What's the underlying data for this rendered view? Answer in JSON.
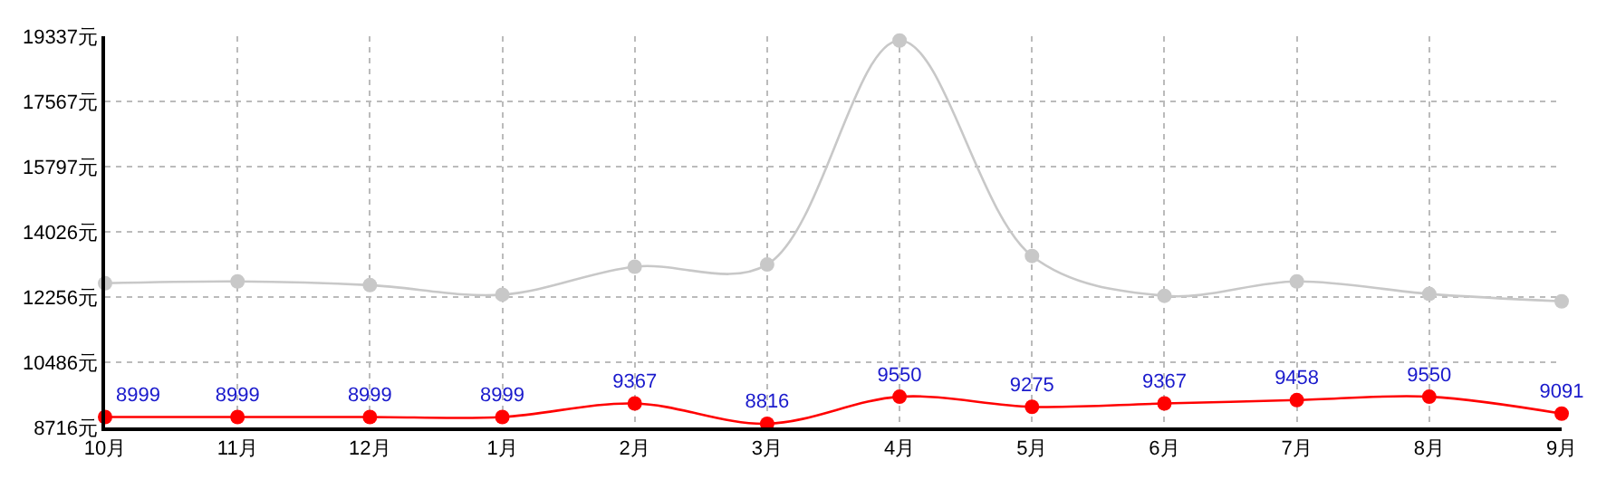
{
  "chart_data": {
    "type": "line",
    "categories": [
      "10月",
      "11月",
      "12月",
      "1月",
      "2月",
      "3月",
      "4月",
      "5月",
      "6月",
      "7月",
      "8月",
      "9月"
    ],
    "series": [
      {
        "color": "#c8c8c8",
        "values": [
          12630,
          12680,
          12580,
          12320,
          13080,
          13140,
          19220,
          13370,
          12290,
          12680,
          12340,
          12140
        ]
      },
      {
        "color": "#ff0000",
        "values": [
          8999,
          8999,
          8999,
          8999,
          9367,
          8816,
          9550,
          9275,
          9367,
          9458,
          9550,
          9091
        ],
        "value_labels": [
          "8999",
          "8999",
          "8999",
          "8999",
          "9367",
          "8816",
          "9550",
          "9275",
          "9367",
          "9458",
          "9550",
          "9091"
        ]
      }
    ],
    "ylim": [
      8716,
      19337
    ],
    "yticks": [
      {
        "value": 8716,
        "label": "8716元"
      },
      {
        "value": 10486,
        "label": "10486元"
      },
      {
        "value": 12256,
        "label": "12256元"
      },
      {
        "value": 14026,
        "label": "14026元"
      },
      {
        "value": 15797,
        "label": "15797元"
      },
      {
        "value": 17567,
        "label": "17567元"
      },
      {
        "value": 19337,
        "label": "19337元"
      }
    ],
    "grid": true,
    "marker": "circle",
    "line_style": "solid"
  }
}
